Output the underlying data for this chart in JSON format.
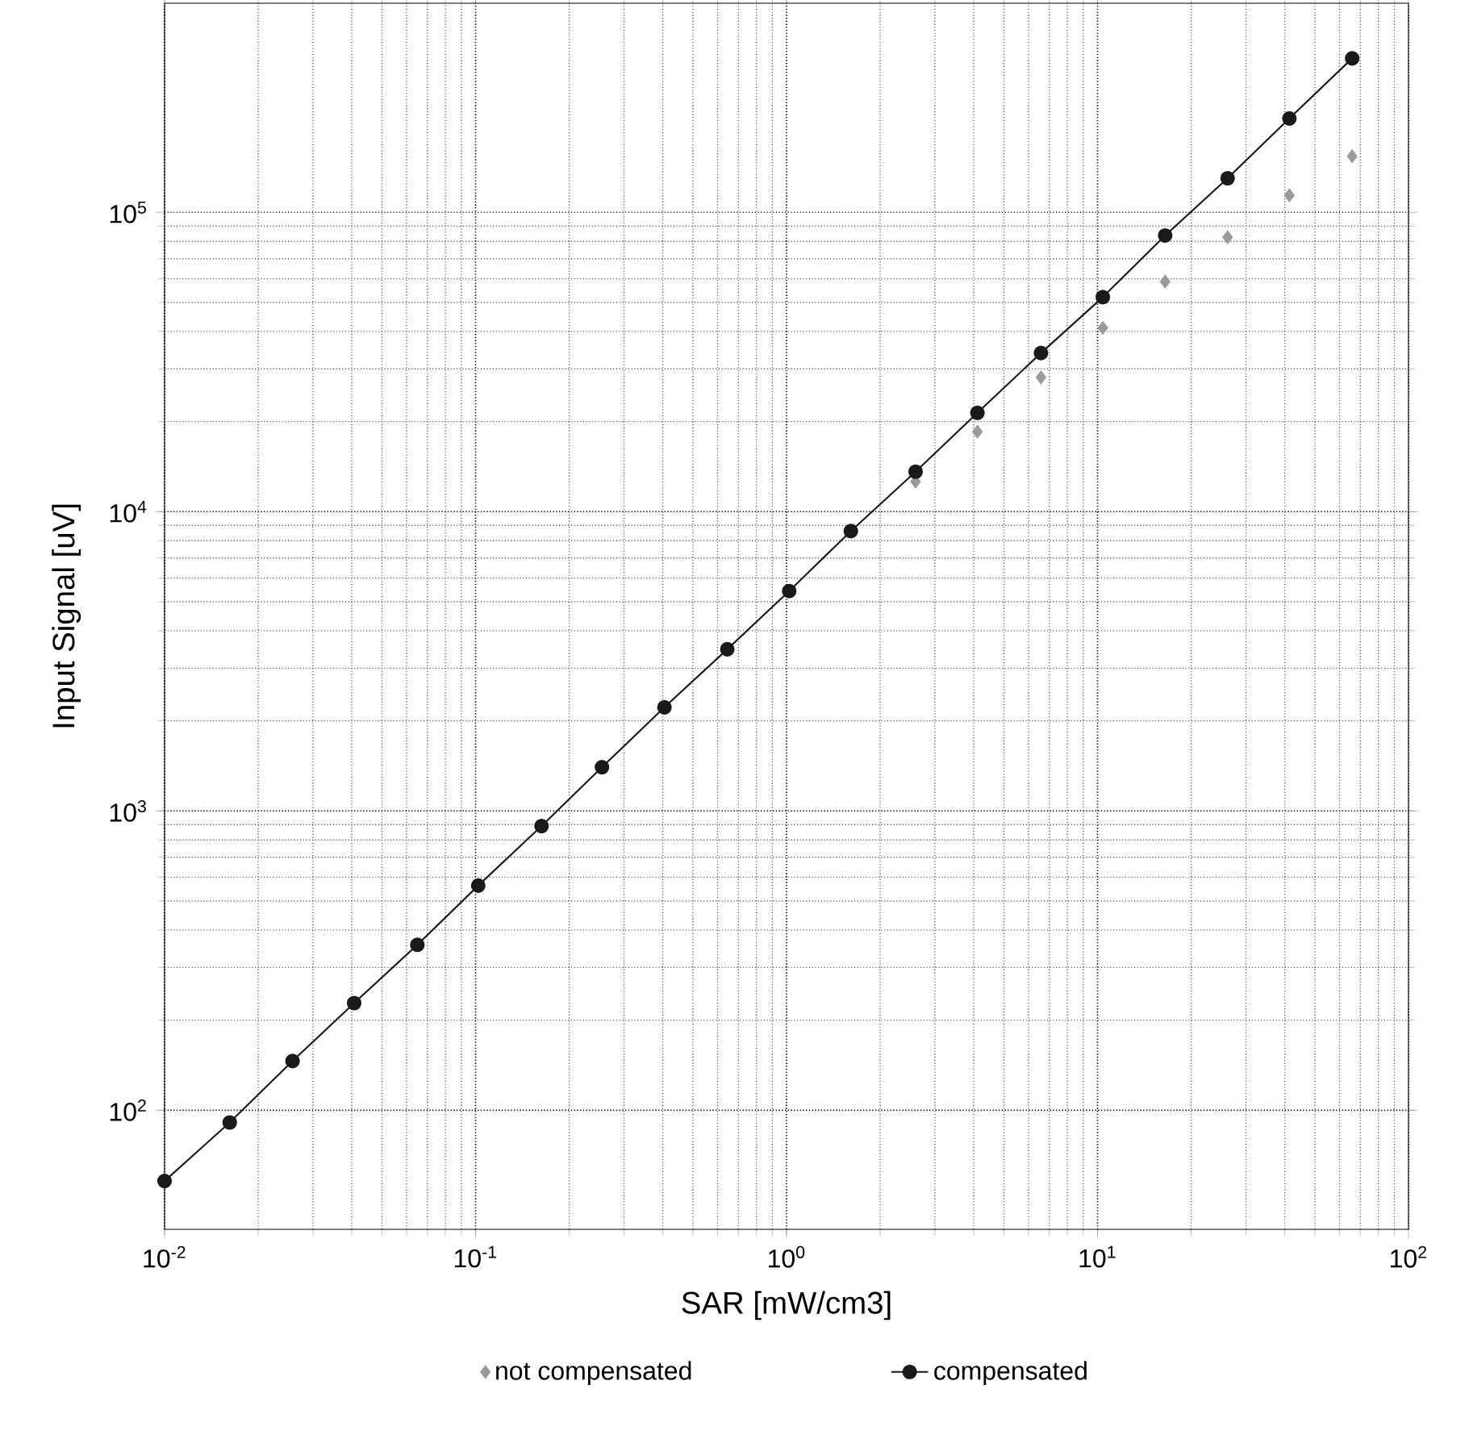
{
  "chart_data": {
    "type": "line",
    "xlabel": "SAR [mW/cm3]",
    "ylabel": "Input Signal [uV]",
    "log": "xy",
    "grid": true,
    "legend": "bottom",
    "xlim": [
      0.01,
      100
    ],
    "ylim": [
      40,
      500000
    ],
    "xticks": [
      {
        "value": 0.01,
        "label": "10$^{-2}$"
      },
      {
        "value": 0.1,
        "label": "10$^{-1}$"
      },
      {
        "value": 1,
        "label": "10$^{0}$"
      },
      {
        "value": 10,
        "label": "10$^{1}$"
      },
      {
        "value": 100,
        "label": "10$^{2}$"
      }
    ],
    "yticks": [
      {
        "value": 100,
        "label": "10$^{2}$"
      },
      {
        "value": 1000,
        "label": "10$^{3}$"
      },
      {
        "value": 10000,
        "label": "10$^{4}$"
      },
      {
        "value": 100000,
        "label": "10$^{5}$"
      }
    ],
    "x": [
      0.01,
      0.0162,
      0.0258,
      0.0407,
      0.065,
      0.102,
      0.163,
      0.255,
      0.405,
      0.645,
      1.02,
      1.61,
      2.6,
      4.11,
      6.58,
      10.4,
      16.5,
      26.2,
      41.4,
      65.9
    ],
    "series": [
      {
        "name": "not compensated",
        "type": "scatter",
        "marker": "diamond",
        "color": "#9a9a9a",
        "values": [
          null,
          null,
          null,
          null,
          null,
          null,
          null,
          null,
          null,
          null,
          null,
          null,
          12600,
          18500,
          28100,
          41100,
          58700,
          82600,
          114000,
          154000
        ]
      },
      {
        "name": "compensated",
        "marker": "circle",
        "color": "#1a1a1a",
        "values": [
          58,
          91,
          146,
          228,
          357,
          563,
          890,
          1400,
          2220,
          3470,
          5430,
          8610,
          13600,
          21400,
          33900,
          52100,
          83700,
          130000,
          206000,
          327000
        ]
      }
    ]
  }
}
